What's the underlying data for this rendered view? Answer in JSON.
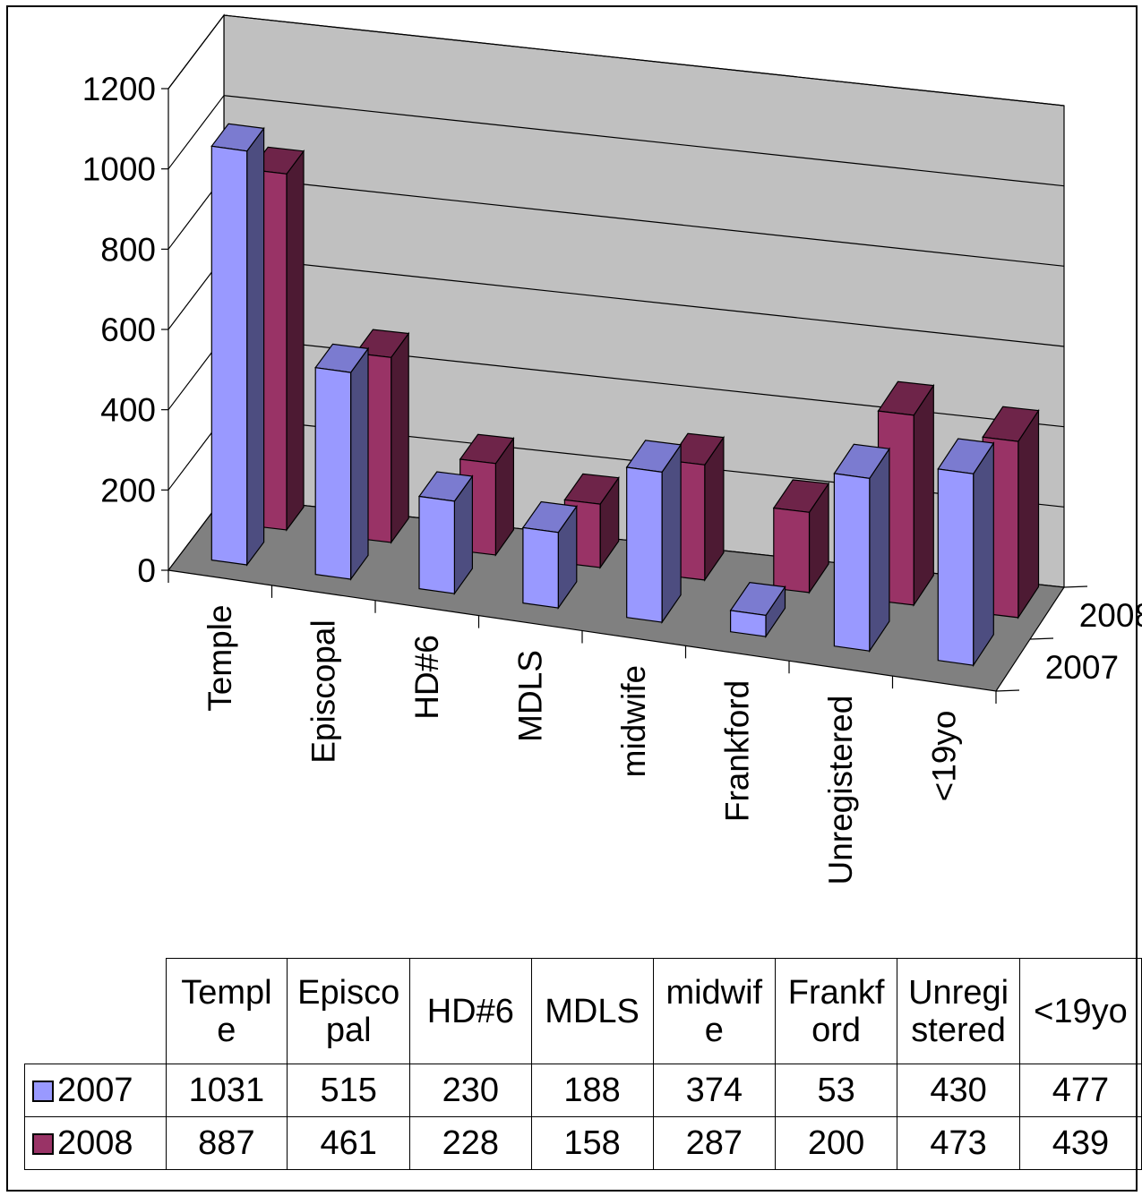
{
  "chart_data": {
    "type": "bar",
    "categories": [
      "Temple",
      "Episcopal",
      "HD#6",
      "MDLS",
      "midwife",
      "Frankford",
      "Unregistered",
      "<19yo"
    ],
    "series": [
      {
        "name": "2007",
        "values": [
          1031,
          515,
          230,
          188,
          374,
          53,
          430,
          477
        ],
        "color": "#9999ff"
      },
      {
        "name": "2008",
        "values": [
          887,
          461,
          228,
          158,
          287,
          200,
          473,
          439
        ],
        "color": "#993366"
      }
    ],
    "y_ticks": [
      "0",
      "200",
      "400",
      "600",
      "800",
      "1000",
      "1200"
    ],
    "ylim": [
      0,
      1200
    ],
    "title": "",
    "xlabel": "",
    "ylabel": "",
    "grid": true,
    "legend": "data table below chart"
  },
  "table": {
    "headers": [
      [
        "Templ",
        "e"
      ],
      [
        "Episco",
        "pal"
      ],
      [
        "HD#6"
      ],
      [
        "MDLS"
      ],
      [
        "midwif",
        "e"
      ],
      [
        "Frankf",
        "ord"
      ],
      [
        "Unregi",
        "stered"
      ],
      [
        "<19yo"
      ]
    ],
    "rows": [
      {
        "label": "2007",
        "values": [
          "1031",
          "515",
          "230",
          "188",
          "374",
          "53",
          "430",
          "477"
        ]
      },
      {
        "label": "2008",
        "values": [
          "887",
          "461",
          "228",
          "158",
          "287",
          "200",
          "473",
          "439"
        ]
      }
    ]
  },
  "colors": {
    "series_2007_front": "#9999ff",
    "series_2007_side": "#4d4d80",
    "series_2008_front": "#993366",
    "series_2008_side": "#4d1a33",
    "back_wall": "#c0c0c0",
    "floor": "#808080"
  }
}
